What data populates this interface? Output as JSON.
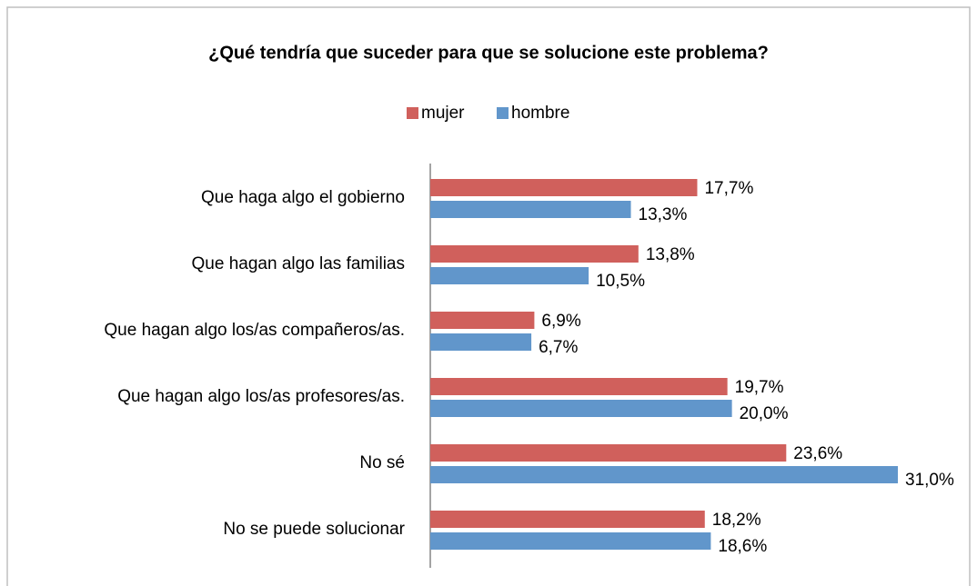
{
  "chart_data": {
    "type": "bar",
    "orientation": "horizontal",
    "title": "¿Qué tendría que suceder para que se solucione este problema?",
    "categories": [
      "Que haga algo el gobierno",
      "Que hagan algo las familias",
      "Que hagan algo los/as compañeros/as.",
      "Que hagan algo los/as profesores/as.",
      "No sé",
      "No se puede solucionar"
    ],
    "series": [
      {
        "name": "mujer",
        "color": "#d0605c",
        "values": [
          17.7,
          13.8,
          6.9,
          19.7,
          23.6,
          18.2
        ],
        "value_labels": [
          "17,7%",
          "13,8%",
          "6,9%",
          "19,7%",
          "23,6%",
          "18,2%"
        ]
      },
      {
        "name": "hombre",
        "color": "#6196cb",
        "values": [
          13.3,
          10.5,
          6.7,
          20.0,
          31.0,
          18.6
        ],
        "value_labels": [
          "13,3%",
          "10,5%",
          "6,7%",
          "20,0%",
          "31,0%",
          "18,6%"
        ]
      }
    ],
    "xlim": [
      0,
      31
    ],
    "legend": "top"
  }
}
